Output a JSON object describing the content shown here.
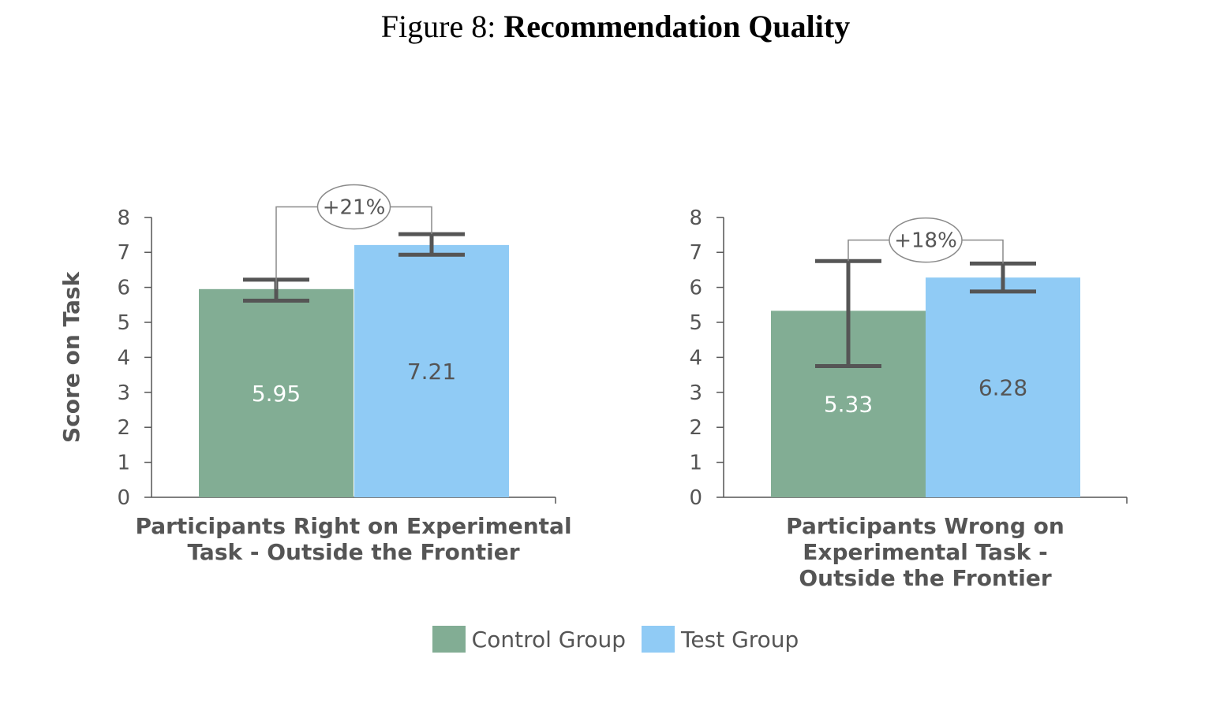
{
  "figure": {
    "prefix": "Figure 8: ",
    "title": "Recommendation Quality"
  },
  "colors": {
    "control": "#82AD94",
    "test": "#90CBF5",
    "error_bar": "#555555",
    "axis": "#555555",
    "text": "#555555",
    "bar_label_on_control": "#ffffff",
    "bar_label_on_test": "#555555"
  },
  "legend": [
    {
      "name": "Control Group",
      "color_key": "control"
    },
    {
      "name": "Test Group",
      "color_key": "test"
    }
  ],
  "chart_data": [
    {
      "type": "bar",
      "ylabel": "Score on Task",
      "ylim": [
        0,
        8
      ],
      "yticks": [
        0,
        1,
        2,
        3,
        4,
        5,
        6,
        7,
        8
      ],
      "category_label": [
        "Participants Right on Experimental",
        "Task - Outside the Frontier"
      ],
      "series": [
        {
          "name": "Control Group",
          "value": 5.95,
          "label": "5.95",
          "error_low": 5.62,
          "error_high": 6.22
        },
        {
          "name": "Test Group",
          "value": 7.21,
          "label": "7.21",
          "error_low": 6.93,
          "error_high": 7.52
        }
      ],
      "annotation": {
        "text": "+21%",
        "left_y": 5.95,
        "right_y": 7.52,
        "bracket_y": 8.3
      }
    },
    {
      "type": "bar",
      "ylabel": "",
      "ylim": [
        0,
        8
      ],
      "yticks": [
        0,
        1,
        2,
        3,
        4,
        5,
        6,
        7,
        8
      ],
      "category_label": [
        "Participants Wrong on",
        "Experimental Task -",
        "Outside the Frontier"
      ],
      "series": [
        {
          "name": "Control Group",
          "value": 5.33,
          "label": "5.33",
          "error_low": 3.75,
          "error_high": 6.75
        },
        {
          "name": "Test Group",
          "value": 6.28,
          "label": "6.28",
          "error_low": 5.88,
          "error_high": 6.68
        }
      ],
      "annotation": {
        "text": "+18%",
        "left_y": 6.75,
        "right_y": 6.68,
        "bracket_y": 7.35
      }
    }
  ]
}
